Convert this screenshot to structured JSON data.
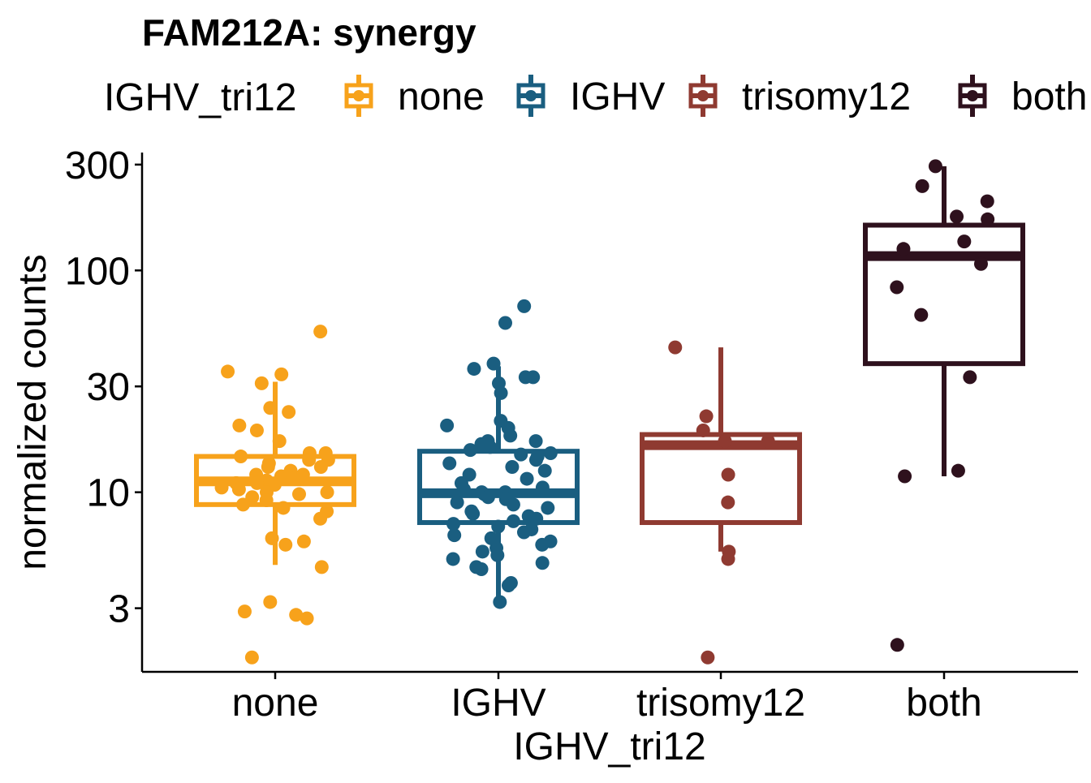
{
  "chart_data": {
    "type": "box",
    "title": "FAM212A: synergy",
    "xlabel": "IGHV_tri12",
    "ylabel": "normalized counts",
    "yscale": "log10",
    "ylim": [
      1.55,
      340
    ],
    "yticks": [
      3,
      10,
      30,
      100,
      300
    ],
    "ytick_labels": [
      "3",
      "10",
      "30",
      "100",
      "300"
    ],
    "grid": false,
    "legend": {
      "title": "IGHV_tri12",
      "position": "top",
      "entries": [
        "none",
        "IGHV",
        "trisomy12",
        "both"
      ]
    },
    "categories": [
      "none",
      "IGHV",
      "trisomy12",
      "both"
    ],
    "colors": {
      "none": "#f7a21b",
      "IGHV": "#1a5e80",
      "trisomy12": "#8f3a31",
      "both": "#2e111d"
    },
    "boxes": [
      {
        "group": "none",
        "whisker_low": 4.7,
        "q1": 8.8,
        "median": 11.2,
        "q3": 14.5,
        "whisker_high": 31.5
      },
      {
        "group": "IGHV",
        "whisker_low": 3.3,
        "q1": 7.3,
        "median": 9.9,
        "q3": 15.3,
        "whisker_high": 37
      },
      {
        "group": "trisomy12",
        "whisker_low": 5.4,
        "q1": 7.3,
        "median": 16.3,
        "q3": 18.2,
        "whisker_high": 45
      },
      {
        "group": "both",
        "whisker_low": 11.8,
        "q1": 38,
        "median": 116,
        "q3": 160,
        "whisker_high": 295
      }
    ],
    "points": [
      {
        "group": "none",
        "values": [
          53,
          35,
          34,
          31,
          24,
          23,
          20,
          19,
          17,
          15,
          15,
          14.5,
          14,
          14,
          13.5,
          13,
          13,
          12.5,
          12,
          12,
          11.8,
          11.5,
          11.3,
          11,
          11,
          10.8,
          10.5,
          10.3,
          10,
          10,
          9.8,
          9.5,
          9.2,
          8.8,
          8.5,
          8.2,
          7.6,
          6.2,
          6,
          5.8,
          4.6,
          3.2,
          2.9,
          2.8,
          2.7,
          1.8
        ]
      },
      {
        "group": "IGHV",
        "values": [
          69,
          58,
          38,
          36,
          33,
          33,
          31,
          28,
          21,
          20,
          19.5,
          18,
          17,
          17,
          16.5,
          16,
          15.5,
          15,
          14.8,
          14.5,
          14,
          13.5,
          13,
          12.5,
          12,
          11.5,
          11,
          10.5,
          10.3,
          10,
          10,
          9.8,
          9.5,
          9.3,
          9,
          8.8,
          8.5,
          8.2,
          8,
          7.8,
          7.6,
          7.4,
          7.2,
          7,
          6.8,
          6.6,
          6.4,
          6.2,
          6,
          5.8,
          5.6,
          5.4,
          5.2,
          5,
          4.8,
          4.6,
          4.5,
          3.9,
          3.8,
          3.2
        ]
      },
      {
        "group": "trisomy12",
        "values": [
          45,
          22,
          19,
          17,
          17,
          12,
          9,
          5.4,
          5,
          1.8
        ]
      },
      {
        "group": "both",
        "values": [
          295,
          240,
          205,
          175,
          170,
          135,
          125,
          107,
          84,
          63,
          33,
          12.5,
          11.8,
          2.05
        ]
      }
    ]
  }
}
